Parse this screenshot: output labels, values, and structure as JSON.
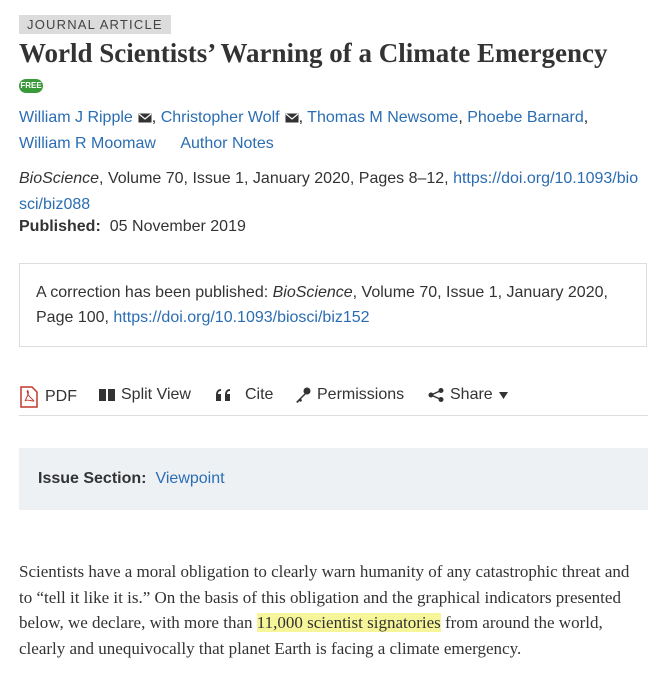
{
  "article_type": "JOURNAL ARTICLE",
  "title": "World Scientists’ Warning of a Climate Emergency",
  "badge": "FREE",
  "authors": [
    "William J Ripple",
    "Christopher Wolf",
    "Thomas M Newsome",
    "Phoebe Barnard",
    "William R Moomaw"
  ],
  "author_separator": ",",
  "author_notes": "Author Notes",
  "citation": {
    "journal": "BioScience",
    "details": ", Volume 70, Issue 1, January 2020, Pages 8–12, ",
    "doi": "https://doi.org/10.1093/biosci/biz088"
  },
  "published": {
    "label": "Published:",
    "date": "05 November 2019"
  },
  "correction": {
    "prefix": "A correction has been published: ",
    "journal": "BioScience",
    "details": ", Volume 70, Issue 1, January 2020, Page 100, ",
    "doi": "https://doi.org/10.1093/biosci/biz152"
  },
  "toolbar": [
    "PDF",
    "Split View",
    "Cite",
    "Permissions",
    "Share"
  ],
  "issue_section": {
    "label": "Issue Section:",
    "value": "Viewpoint"
  },
  "abstract": {
    "before": "Scientists have a moral obligation to clearly warn humanity of any catastrophic threat and to “tell it like it is.” On the basis of this obligation and the graphical indicators presented below, we declare, with more than ",
    "highlight": "11,000 scientist signatories",
    "after": " from around the world, clearly and unequivocally that planet Earth is facing a climate emergency."
  }
}
